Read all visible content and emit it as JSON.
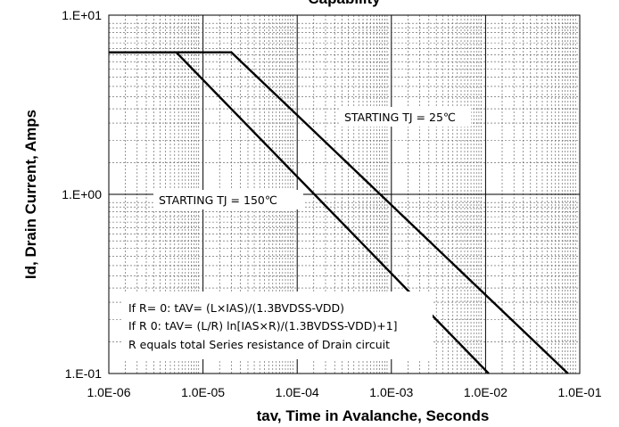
{
  "chart_data": {
    "type": "line",
    "title": "Capability",
    "xlabel": "tav, Time in Avalanche, Seconds",
    "ylabel": "Id, Drain Current, Amps",
    "x_scale": "log",
    "y_scale": "log",
    "xlim": [
      1e-06,
      0.1
    ],
    "ylim": [
      0.1,
      10
    ],
    "grid": true,
    "x_ticks": [
      "1.0E-06",
      "1.0E-05",
      "1.0E-04",
      "1.0E-03",
      "1.0E-02",
      "1.0E-01"
    ],
    "y_ticks": [
      "1.E-01",
      "1.E+00",
      "1.E+01"
    ],
    "series": [
      {
        "name": "STARTING TJ = 25℃",
        "x": [
          1e-06,
          2e-05,
          0.075
        ],
        "y": [
          6.2,
          6.2,
          0.1
        ]
      },
      {
        "name": "STARTING TJ = 150℃",
        "x": [
          1e-06,
          5.2e-06,
          0.0108
        ],
        "y": [
          6.2,
          6.2,
          0.1
        ]
      }
    ],
    "annotations": [
      "If R= 0: tAV= (L×IAS)/(1.3BVDSS-VDD)",
      "If R 0: tAV= (L/R) ln[IAS×R)/(1.3BVDSS-VDD)+1]",
      "R equals total Series resistance of Drain circuit"
    ]
  }
}
